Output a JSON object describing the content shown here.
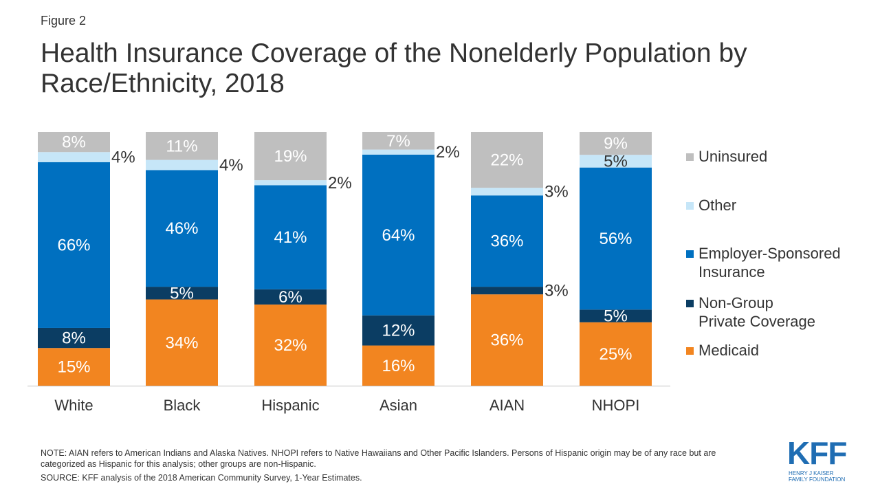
{
  "figure_label": "Figure 2",
  "title": "Health Insurance Coverage of the Nonelderly Population by Race/Ethnicity, 2018",
  "colors": {
    "uninsured": "#bfbfbf",
    "other": "#c6e6f8",
    "employer": "#0070c0",
    "nongroup": "#0b3d63",
    "medicaid": "#f28520"
  },
  "legend": [
    {
      "key": "uninsured",
      "label": "Uninsured"
    },
    {
      "key": "other",
      "label": "Other"
    },
    {
      "key": "employer",
      "label": "Employer-Sponsored Insurance"
    },
    {
      "key": "nongroup",
      "label": "Non-Group Private Coverage"
    },
    {
      "key": "medicaid",
      "label": "Medicaid"
    }
  ],
  "chart_data": {
    "type": "bar",
    "stacked": true,
    "categories": [
      "White",
      "Black",
      "Hispanic",
      "Asian",
      "AIAN",
      "NHOPI"
    ],
    "series": [
      {
        "key": "medicaid",
        "name": "Medicaid",
        "values": [
          15,
          34,
          32,
          16,
          36,
          25
        ],
        "labels": [
          "15%",
          "34%",
          "32%",
          "16%",
          "36%",
          "25%"
        ]
      },
      {
        "key": "nongroup",
        "name": "Non-Group Private Coverage",
        "values": [
          8,
          5,
          6,
          12,
          3,
          5
        ],
        "labels": [
          "8%",
          "5%",
          "6%",
          "12%",
          "3%",
          "5%"
        ]
      },
      {
        "key": "employer",
        "name": "Employer-Sponsored Insurance",
        "values": [
          66,
          46,
          41,
          64,
          36,
          56
        ],
        "labels": [
          "66%",
          "46%",
          "41%",
          "64%",
          "36%",
          "56%"
        ]
      },
      {
        "key": "other",
        "name": "Other",
        "values": [
          4,
          4,
          2,
          2,
          3,
          5
        ],
        "labels": [
          "4%",
          "4%",
          "2%",
          "2%",
          "3%",
          "5%"
        ]
      },
      {
        "key": "uninsured",
        "name": "Uninsured",
        "values": [
          8,
          11,
          19,
          7,
          22,
          9
        ],
        "labels": [
          "8%",
          "11%",
          "19%",
          "7%",
          "22%",
          "9%"
        ]
      }
    ],
    "ylim": [
      0,
      100
    ]
  },
  "note": "NOTE: AIAN refers to American Indians and Alaska Natives. NHOPI refers to Native Hawaiians and Other Pacific Islanders. Persons of Hispanic origin may be of any race but are categorized as Hispanic for this analysis; other groups are non-Hispanic.",
  "source": "SOURCE: KFF analysis of the 2018 American Community Survey, 1-Year Estimates.",
  "logo": {
    "word": "KFF",
    "line1": "HENRY J KAISER",
    "line2": "FAMILY FOUNDATION"
  }
}
